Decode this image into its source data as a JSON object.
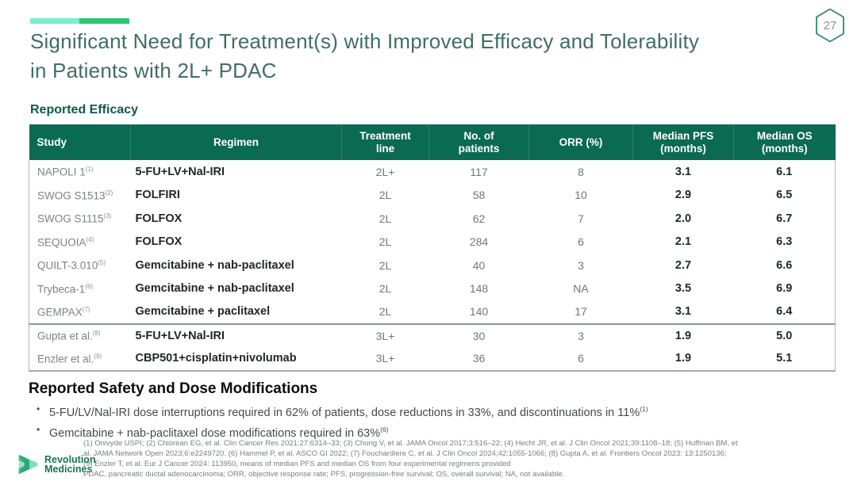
{
  "page": {
    "number": "27"
  },
  "title": "Significant Need for Treatment(s) with Improved Efficacy and Tolerability in Patients with 2L+ PDAC",
  "colors": {
    "header_green": "#0B6A52",
    "title_teal": "#406E66",
    "accent_mint": "#7BEDCE",
    "accent_green": "#2BC873",
    "logo_green": "#17754F"
  },
  "icons": {
    "page_badge": "hexagon-outline",
    "logo": "revolution-medicines-chevron"
  },
  "efficacy": {
    "heading": "Reported Efficacy",
    "table": {
      "columns": [
        {
          "key": "study",
          "label": "Study"
        },
        {
          "key": "regimen",
          "label": "Regimen"
        },
        {
          "key": "line",
          "label": "Treatment\nline"
        },
        {
          "key": "patients",
          "label": "No. of\npatients"
        },
        {
          "key": "orr",
          "label": "ORR (%)"
        },
        {
          "key": "pfs",
          "label": "Median PFS\n(months)"
        },
        {
          "key": "os",
          "label": "Median OS\n(months)"
        }
      ],
      "rows": [
        {
          "study": "NAPOLI 1",
          "ref": "(1)",
          "regimen": "5-FU+LV+Nal-IRI",
          "line": "2L+",
          "patients": "117",
          "orr": "8",
          "pfs": "3.1",
          "os": "6.1",
          "group_start": false
        },
        {
          "study": "SWOG S1513",
          "ref": "(2)",
          "regimen": "FOLFIRI",
          "line": "2L",
          "patients": "58",
          "orr": "10",
          "pfs": "2.9",
          "os": "6.5",
          "group_start": false
        },
        {
          "study": "SWOG S1115",
          "ref": "(3)",
          "regimen": "FOLFOX",
          "line": "2L",
          "patients": "62",
          "orr": "7",
          "pfs": "2.0",
          "os": "6.7",
          "group_start": false
        },
        {
          "study": "SEQUOIA",
          "ref": "(4)",
          "regimen": "FOLFOX",
          "line": "2L",
          "patients": "284",
          "orr": "6",
          "pfs": "2.1",
          "os": "6.3",
          "group_start": false
        },
        {
          "study": "QUILT-3.010",
          "ref": "(5)",
          "regimen": "Gemcitabine + nab-paclitaxel",
          "line": "2L",
          "patients": "40",
          "orr": "3",
          "pfs": "2.7",
          "os": "6.6",
          "group_start": false
        },
        {
          "study": "Trybeca-1",
          "ref": "(6)",
          "regimen": "Gemcitabine + nab-paclitaxel",
          "line": "2L",
          "patients": "148",
          "orr": "NA",
          "pfs": "3.5",
          "os": "6.9",
          "group_start": false
        },
        {
          "study": "GEMPAX",
          "ref": "(7)",
          "regimen": "Gemcitabine + paclitaxel",
          "line": "2L",
          "patients": "140",
          "orr": "17",
          "pfs": "3.1",
          "os": "6.4",
          "group_start": false
        },
        {
          "study": "Gupta et al.",
          "ref": "(8)",
          "regimen": "5-FU+LV+Nal-IRI",
          "line": "3L+",
          "patients": "30",
          "orr": "3",
          "pfs": "1.9",
          "os": "5.0",
          "group_start": true
        },
        {
          "study": "Enzler et al.",
          "ref": "(9)",
          "regimen": "CBP501+cisplatin+nivolumab",
          "line": "3L+",
          "patients": "36",
          "orr": "6",
          "pfs": "1.9",
          "os": "5.1",
          "group_start": false
        }
      ]
    }
  },
  "safety": {
    "heading": "Reported Safety and Dose Modifications",
    "bullets": [
      {
        "text": "5-FU/LV/Nal-IRI dose interruptions required in 62% of patients, dose reductions in 33%, and discontinuations in 11%",
        "ref": "(1)"
      },
      {
        "text": "Gemcitabine + nab-paclitaxel dose modifications required in 63%",
        "ref": "(6)"
      }
    ]
  },
  "footer": {
    "logo_line1": "Revolution",
    "logo_line2": "Medicines",
    "footnotes": [
      "(1) Onivyde USPI; (2) Chiorean EG, et al. Clin Cancer Res 2021:27:6314–33; (3) Chung V, et al. JAMA Oncol 2017;3:516–22; (4) Hecht JR, et al. J Clin Oncol 2021;39:1108–18; (5) Huffman BM, et",
      "al. JAMA Network Open 2023;6:e2249720. (6) Hammel P, et al. ASCO GI 2022; (7) Fouchardiere C, et al. J Clin Oncol 2024;42:1055-1066; (8) Gupta A, et al. Frontiers Oncol 2023: 13:1250136;",
      "(9) Enzler T, et al. Eur J Cancer 2024: 113950, means of median PFS and median OS from four experimental regimens provided",
      "PDAC, pancreatic ductal adenocarcinoma; ORR, objective response rate; PFS, progression-free survival; OS, overall survival; NA, not available."
    ]
  }
}
